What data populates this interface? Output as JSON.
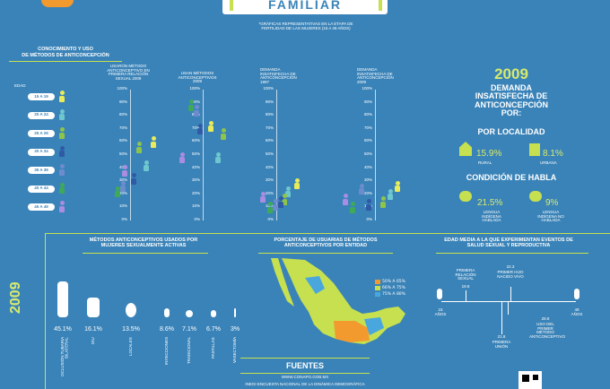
{
  "header": {
    "title": "FAMILIAR",
    "note": "*GRÁFICAS REPRESENTATIVAS EN LA ETAPA DE FERTILIDAD DE LAS MUJERES (15 A 49 AÑOS)"
  },
  "knowledge": {
    "title_line1": "CONOCIMIENTO Y USO",
    "title_line2": "DE MÉTODOS DE ANTICONCEPCIÓN",
    "age_label": "EDAD",
    "ages": [
      "15 A 19",
      "20 A 24",
      "25 A 29",
      "30 A 34",
      "35 A 39",
      "40 A 44",
      "45 A 49"
    ],
    "col1": "USARON MÉTODO ANTICONCEPTIVO EN PRIMERA RELACIÓN SEXUAL 2009",
    "col2": "USAN MÉTODOS ANTICONCEPTIVOS 2009",
    "col3": "DEMANDA INSATISFECHA DE ANTICONCEPCIÓN 1997",
    "col4": "DEMANDA INSATISFECHA DE ANTICONCEPCIÓN 2009",
    "ticks": [
      "100%",
      "90%",
      "80%",
      "70%",
      "60%",
      "50%",
      "40%",
      "30%",
      "20%",
      "10%",
      "0%"
    ]
  },
  "demand": {
    "year": "2009",
    "title": "DEMANDA INSATISFECHA DE ANTICONCEPCIÓN POR:",
    "by_locality": "POR LOCALIDAD",
    "rural_value": "15.9%",
    "rural_label": "RURAL",
    "urban_value": "8.1%",
    "urban_label": "URBANA",
    "by_language": "CONDICIÓN DE HABLA",
    "ind_value": "21.5%",
    "ind_label": "LENGUA INDÍGENA HABLADA",
    "nonind_value": "9%",
    "nonind_label": "LENGUA INDÍGENA NO HABLADA"
  },
  "methods": {
    "title": "MÉTODOS ANTICONCEPTIVOS USADOS POR MUJERES SEXUALMENTE ACTIVAS",
    "year": "2009",
    "items": [
      {
        "value": "45.1%",
        "label": "OCLUSIÓN TUBARIA BILATERAL"
      },
      {
        "value": "16.1%",
        "label": "DIU"
      },
      {
        "value": "13.5%",
        "label": "LOCALES"
      },
      {
        "value": "8.6%",
        "label": "INYECCIONES"
      },
      {
        "value": "7.1%",
        "label": "TRADICIONAL"
      },
      {
        "value": "6.7%",
        "label": "PASTILLAS"
      },
      {
        "value": "3%",
        "label": "VASECTOMÍA"
      }
    ]
  },
  "map": {
    "title": "PORCENTAJE DE USUARIAS DE MÉTODOS ANTICONCEPTIVOS POR ENTIDAD",
    "legend": [
      {
        "label": "50% A 65%",
        "color": "#f29a2e"
      },
      {
        "label": "66% A 75%",
        "color": "#c6e04f"
      },
      {
        "label": "75% A 80%",
        "color": "#4aa7de"
      }
    ]
  },
  "timeline": {
    "title": "EDAD MEDIA A LA QUE EXPERIMENTAN EVENTOS DE SALUD SEXUAL Y REPRODUCTIVA",
    "start": "15 AÑOS",
    "end": "49 AÑOS",
    "events": [
      {
        "label": "PRIMERA RELACIÓN SEXUAL",
        "value": "19.8"
      },
      {
        "label": "PRIMER HIJO NACIDO VIVO",
        "value": "22.3"
      },
      {
        "label": "PRIMERA UNIÓN",
        "value": "21.8"
      },
      {
        "label": "USO DEL PRIMER MÉTODO ANTICONCEPTIVO",
        "value": "28.8"
      }
    ]
  },
  "sources": {
    "title": "FUENTES",
    "url": "WWW.CONAPO.GOB.MX",
    "ref": "INEGI ENCUESTA NACIONAL DE LA DINÁMICA DEMOGRÁFICA"
  },
  "colors": {
    "bg": "#3a83b8",
    "accent": "#c6e04f",
    "ages": [
      "#e9eb5a",
      "#6ec6cf",
      "#8fc44a",
      "#2f5aa5",
      "#6d8ccd",
      "#3fa95a",
      "#a88de0"
    ]
  }
}
